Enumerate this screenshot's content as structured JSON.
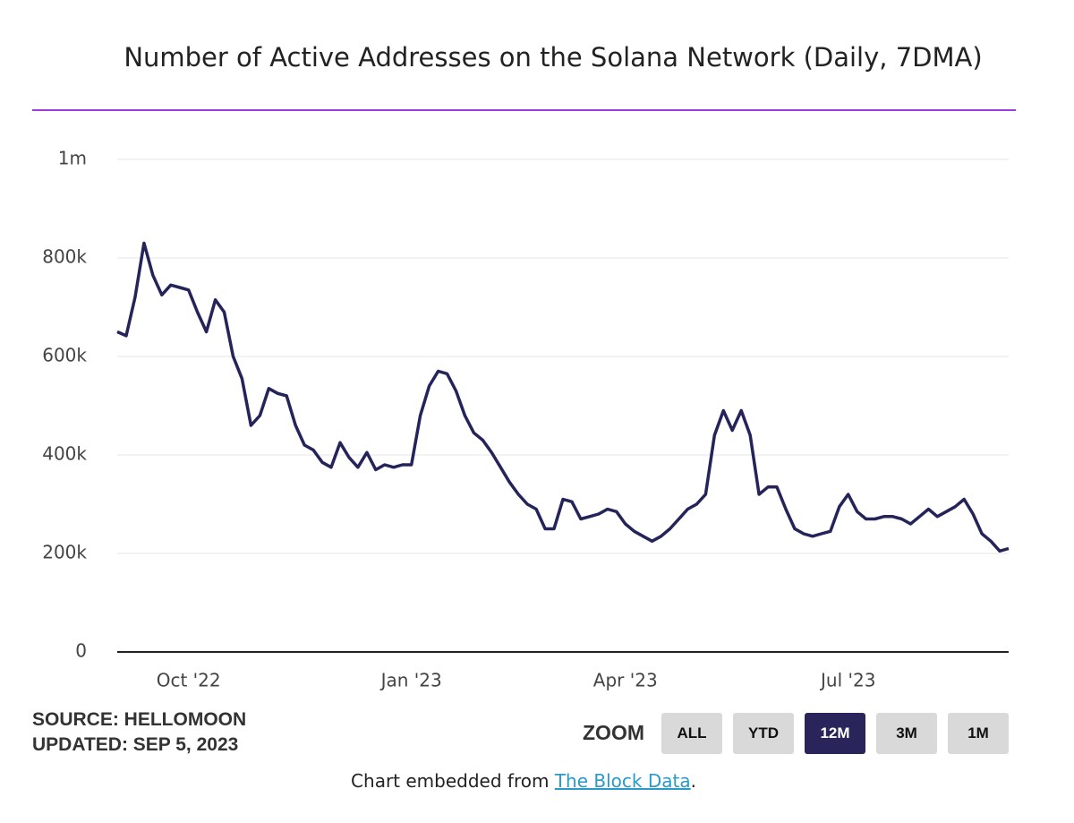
{
  "chart_data": {
    "type": "line",
    "title": "Number of Active Addresses on the Solana Network (Daily, 7DMA)",
    "categories": [
      null,
      null,
      null,
      null,
      null,
      null,
      null,
      null,
      "Oct '22",
      null,
      null,
      null,
      null,
      null,
      null,
      null,
      null,
      null,
      null,
      null,
      null,
      null,
      null,
      null,
      null,
      null,
      null,
      null,
      null,
      null,
      null,
      null,
      null,
      "Jan '23",
      null,
      null,
      null,
      null,
      null,
      null,
      null,
      null,
      null,
      null,
      null,
      null,
      null,
      null,
      null,
      null,
      null,
      null,
      null,
      null,
      null,
      null,
      null,
      "Apr '23",
      null,
      null,
      null,
      null,
      null,
      null,
      null,
      null,
      null,
      null,
      null,
      null,
      null,
      null,
      null,
      null,
      null,
      null,
      null,
      null,
      null,
      null,
      null,
      null,
      "Jul '23",
      null,
      null,
      null,
      null,
      null,
      null,
      null,
      null,
      null,
      null,
      null,
      null,
      null,
      null,
      null,
      null,
      null,
      null
    ],
    "series": [
      {
        "color": "#25245a",
        "values": [
          650000,
          642000,
          720000,
          830000,
          765000,
          725000,
          745000,
          740000,
          735000,
          690000,
          650000,
          715000,
          690000,
          600000,
          555000,
          460000,
          480000,
          535000,
          525000,
          520000,
          460000,
          420000,
          410000,
          385000,
          375000,
          425000,
          395000,
          375000,
          405000,
          370000,
          380000,
          375000,
          380000,
          380000,
          480000,
          540000,
          570000,
          565000,
          530000,
          480000,
          445000,
          430000,
          405000,
          375000,
          345000,
          320000,
          300000,
          290000,
          250000,
          250000,
          310000,
          305000,
          270000,
          275000,
          280000,
          290000,
          285000,
          260000,
          245000,
          235000,
          225000,
          235000,
          250000,
          270000,
          290000,
          300000,
          320000,
          440000,
          490000,
          450000,
          490000,
          440000,
          320000,
          335000,
          335000,
          290000,
          250000,
          240000,
          235000,
          240000,
          245000,
          295000,
          320000,
          285000,
          270000,
          270000,
          275000,
          275000,
          270000,
          260000,
          275000,
          290000,
          275000,
          285000,
          295000,
          310000,
          280000,
          240000,
          225000,
          205000,
          210000
        ]
      }
    ],
    "ylim": [
      0,
      1000000
    ],
    "yticks": [
      0,
      {
        "value": 200000,
        "label": "200k"
      },
      {
        "value": 400000,
        "label": "400k"
      },
      {
        "value": 600000,
        "label": "600k"
      },
      {
        "value": 800000,
        "label": "800k"
      },
      {
        "value": 1000000,
        "label": "1m"
      }
    ],
    "grid": true
  },
  "footer": {
    "source": "SOURCE: HELLOMOON",
    "updated": "UPDATED: SEP 5, 2023",
    "zoom_label": "ZOOM",
    "zoom_buttons": [
      "ALL",
      "YTD",
      "12M",
      "3M",
      "1M"
    ],
    "active_zoom": "12M",
    "embed_text": "Chart embedded from",
    "embed_link": "The Block Data",
    "embed_end": "."
  }
}
